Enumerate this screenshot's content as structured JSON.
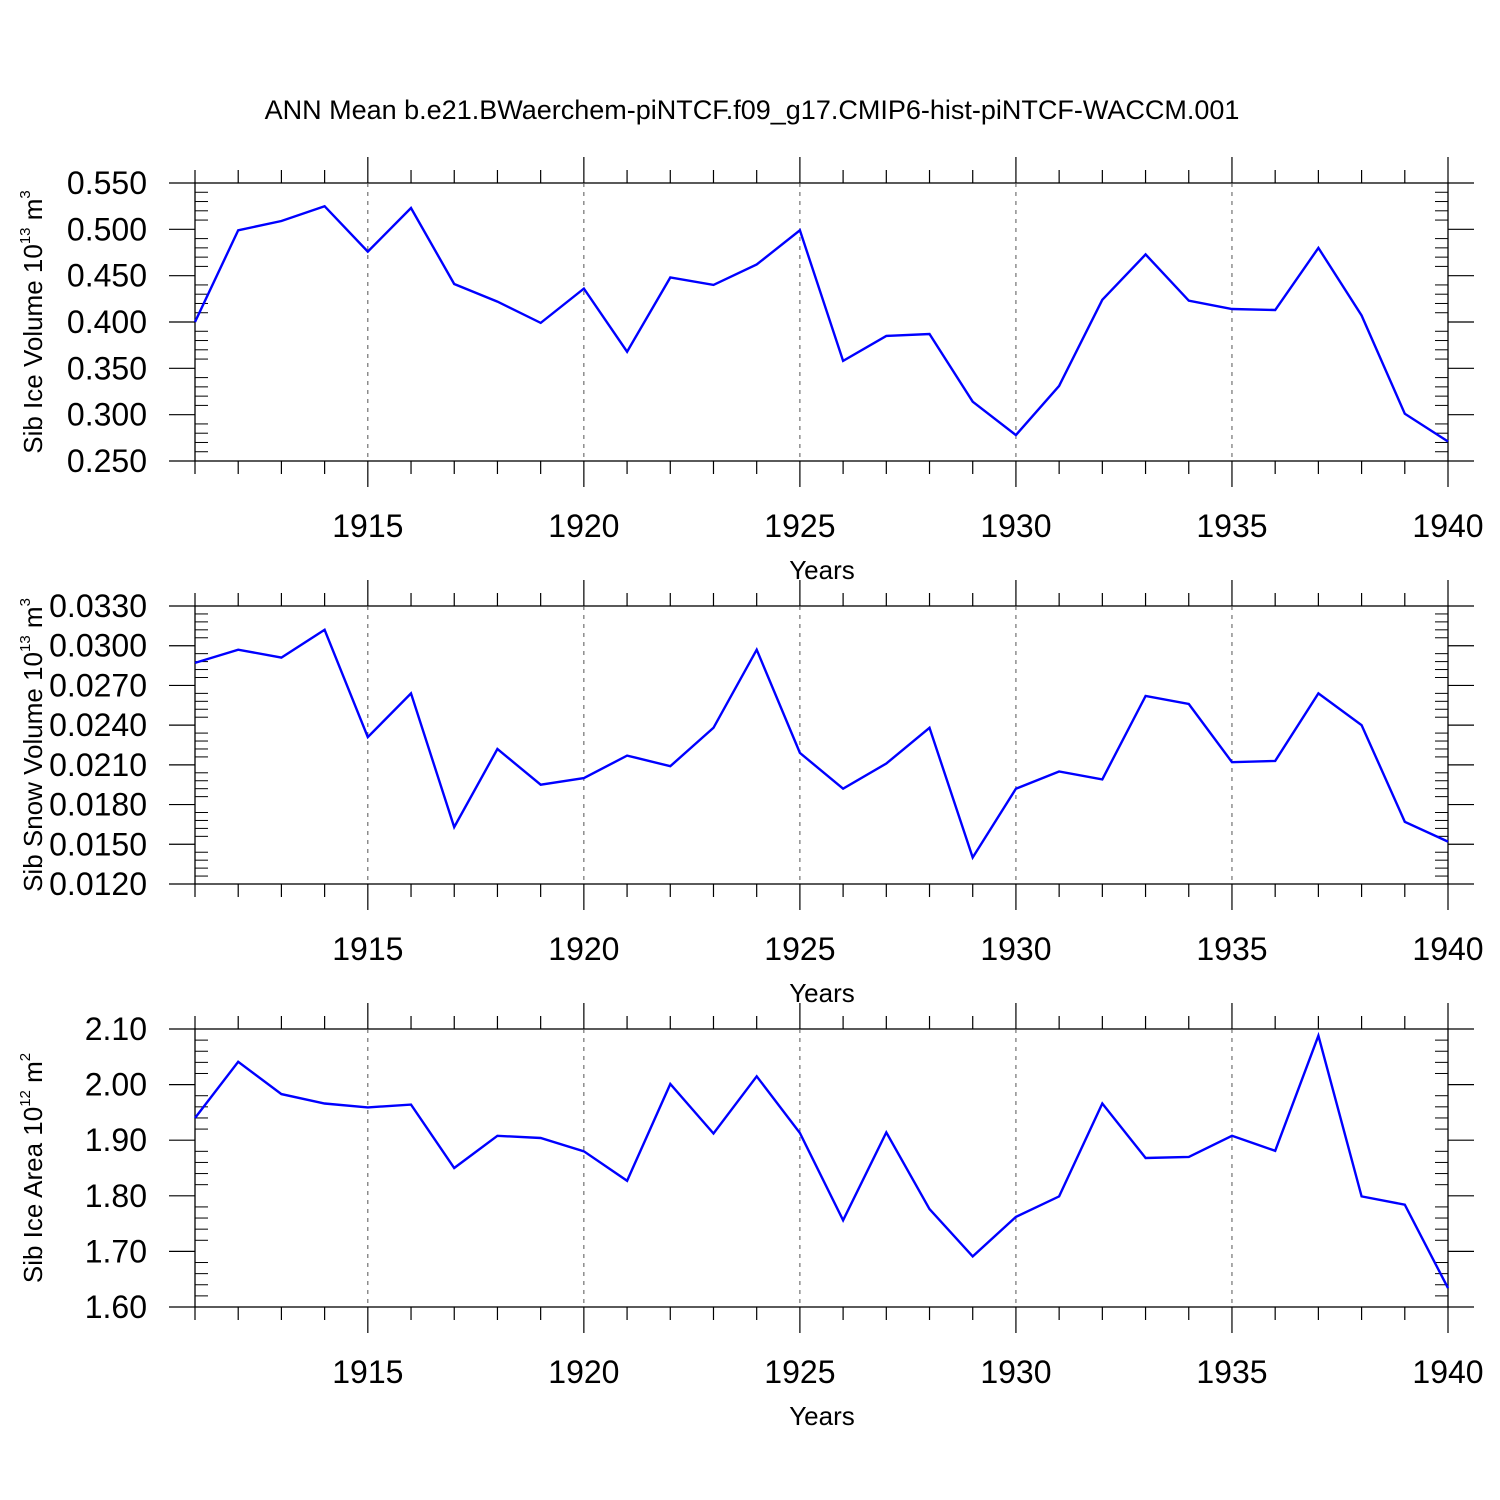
{
  "title": "ANN Mean b.e21.BWaerchem-piNTCF.f09_g17.CMIP6-hist-piNTCF-WACCM.001",
  "chart_data": [
    {
      "type": "line",
      "ylabel": {
        "text": "Sib Ice Volume 10",
        "exponent": "13",
        "unit": "m",
        "unit_exponent": "3"
      },
      "xlabel": "Years",
      "xlim": [
        1911,
        1940
      ],
      "ylim": [
        0.25,
        0.55
      ],
      "yticks": [
        "0.550",
        "0.500",
        "0.450",
        "0.400",
        "0.350",
        "0.300",
        "0.250"
      ],
      "xticks": [
        "1915",
        "1920",
        "1925",
        "1930",
        "1935",
        "1940"
      ],
      "line_color": "#0000ff",
      "series": [
        {
          "name": "Sib Ice Volume",
          "x": [
            1911,
            1912,
            1913,
            1914,
            1915,
            1916,
            1917,
            1918,
            1919,
            1920,
            1921,
            1922,
            1923,
            1924,
            1925,
            1926,
            1927,
            1928,
            1929,
            1930,
            1931,
            1932,
            1933,
            1934,
            1935,
            1936,
            1937,
            1938,
            1939,
            1940
          ],
          "values": [
            0.4,
            0.499,
            0.509,
            0.525,
            0.476,
            0.523,
            0.441,
            0.422,
            0.399,
            0.436,
            0.368,
            0.448,
            0.44,
            0.462,
            0.499,
            0.358,
            0.385,
            0.387,
            0.314,
            0.278,
            0.331,
            0.424,
            0.473,
            0.423,
            0.414,
            0.413,
            0.48,
            0.407,
            0.301,
            0.271
          ]
        }
      ]
    },
    {
      "type": "line",
      "ylabel": {
        "text": "Sib Snow Volume 10",
        "exponent": "13",
        "unit": "m",
        "unit_exponent": "3"
      },
      "xlabel": "Years",
      "xlim": [
        1911,
        1940
      ],
      "ylim": [
        0.012,
        0.033
      ],
      "yticks": [
        "0.0330",
        "0.0300",
        "0.0270",
        "0.0240",
        "0.0210",
        "0.0180",
        "0.0150",
        "0.0120"
      ],
      "xticks": [
        "1915",
        "1920",
        "1925",
        "1930",
        "1935",
        "1940"
      ],
      "line_color": "#0000ff",
      "series": [
        {
          "name": "Sib Snow Volume",
          "x": [
            1911,
            1912,
            1913,
            1914,
            1915,
            1916,
            1917,
            1918,
            1919,
            1920,
            1921,
            1922,
            1923,
            1924,
            1925,
            1926,
            1927,
            1928,
            1929,
            1930,
            1931,
            1932,
            1933,
            1934,
            1935,
            1936,
            1937,
            1938,
            1939,
            1940
          ],
          "values": [
            0.0287,
            0.0297,
            0.0291,
            0.0312,
            0.0231,
            0.0264,
            0.0163,
            0.0222,
            0.0195,
            0.02,
            0.0217,
            0.0209,
            0.0238,
            0.0297,
            0.0219,
            0.0192,
            0.0211,
            0.0238,
            0.014,
            0.0192,
            0.0205,
            0.0199,
            0.0262,
            0.0256,
            0.0212,
            0.0213,
            0.0264,
            0.024,
            0.0167,
            0.0152
          ]
        }
      ]
    },
    {
      "type": "line",
      "ylabel": {
        "text": "Sib Ice Area 10",
        "exponent": "12",
        "unit": "m",
        "unit_exponent": "2"
      },
      "xlabel": "Years",
      "xlim": [
        1911,
        1940
      ],
      "ylim": [
        1.6,
        2.1
      ],
      "yticks": [
        "2.10",
        "2.00",
        "1.90",
        "1.80",
        "1.70",
        "1.60"
      ],
      "xticks": [
        "1915",
        "1920",
        "1925",
        "1930",
        "1935",
        "1940"
      ],
      "line_color": "#0000ff",
      "series": [
        {
          "name": "Sib Ice Area",
          "x": [
            1911,
            1912,
            1913,
            1914,
            1915,
            1916,
            1917,
            1918,
            1919,
            1920,
            1921,
            1922,
            1923,
            1924,
            1925,
            1926,
            1927,
            1928,
            1929,
            1930,
            1931,
            1932,
            1933,
            1934,
            1935,
            1936,
            1937,
            1938,
            1939,
            1940
          ],
          "values": [
            1.94,
            2.041,
            1.983,
            1.966,
            1.959,
            1.964,
            1.85,
            1.908,
            1.904,
            1.88,
            1.827,
            2.001,
            1.912,
            2.015,
            1.913,
            1.756,
            1.914,
            1.776,
            1.691,
            1.762,
            1.799,
            1.966,
            1.868,
            1.87,
            1.908,
            1.881,
            2.088,
            1.799,
            1.784,
            1.634
          ]
        }
      ]
    }
  ]
}
